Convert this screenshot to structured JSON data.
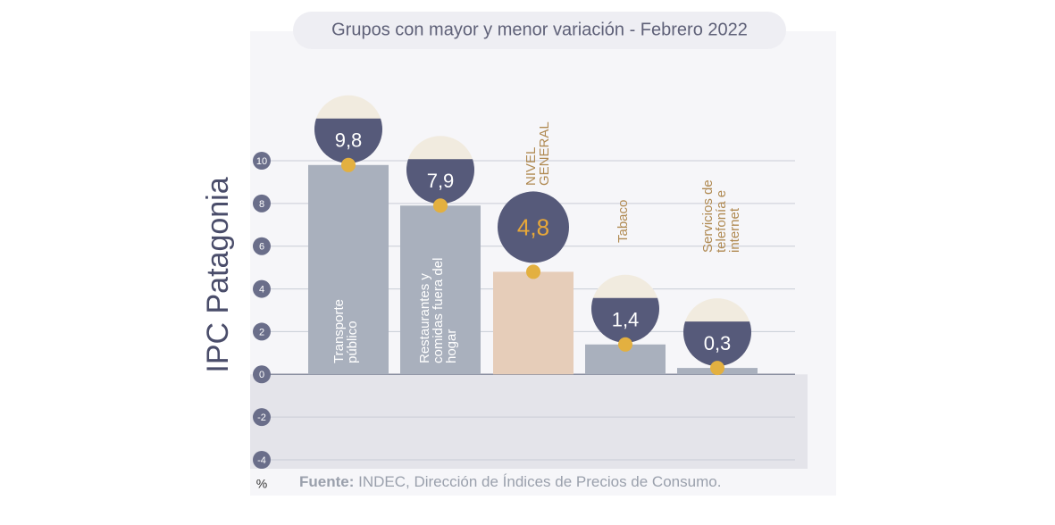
{
  "chart_data": {
    "type": "bar",
    "title": "Grupos con mayor y menor variación - Febrero 2022",
    "y_label": "IPC Patagonia",
    "y_unit": "%",
    "source_label": "Fuente:",
    "source": "INDEC, Dirección de Índices de Precios de Consumo.",
    "categories": [
      "Transporte público",
      "Restaurantes y comidas fuera del hogar",
      "NIVEL GENERAL",
      "Tabaco",
      "Servicios de telefonía e internet"
    ],
    "values": [
      9.8,
      7.9,
      4.8,
      1.4,
      0.3
    ],
    "value_labels": [
      "9,8",
      "7,9",
      "4,8",
      "1,4",
      "0,3"
    ],
    "colors": [
      "#a9b0bd",
      "#a9b0bd",
      "#e6cdb9",
      "#a9b0bd",
      "#a9b0bd"
    ],
    "ylim": [
      -4,
      10
    ],
    "yticks": [
      10,
      8,
      6,
      4,
      2,
      0,
      -2,
      -4
    ],
    "grid": true
  }
}
